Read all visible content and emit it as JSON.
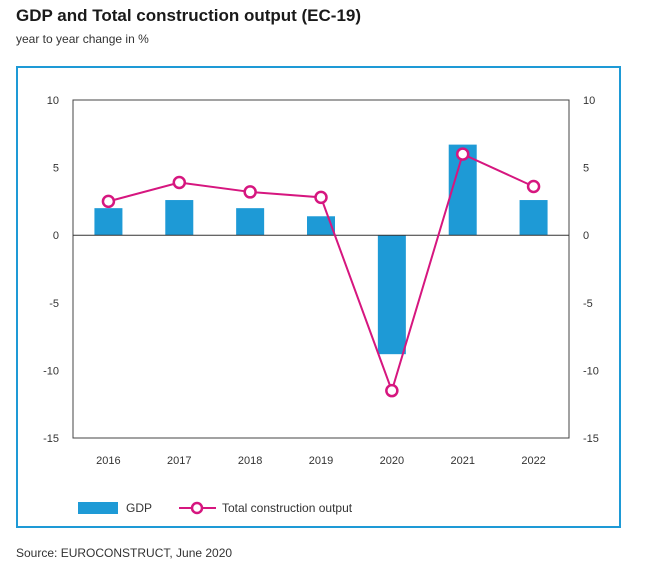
{
  "header": {
    "title": "GDP and Total construction output (EC-19)",
    "subtitle": "year to year change in %"
  },
  "footer": {
    "source": "Source: EUROCONSTRUCT, June 2020"
  },
  "colors": {
    "frame": "#1e9ad6",
    "gdp": "#1e9ad6",
    "construction": "#d6167f"
  },
  "chart_data": {
    "type": "bar",
    "categories": [
      "2016",
      "2017",
      "2018",
      "2019",
      "2020",
      "2021",
      "2022"
    ],
    "series": [
      {
        "name": "GDP",
        "type": "bar",
        "values": [
          2.0,
          2.6,
          2.0,
          1.4,
          -8.8,
          6.7,
          2.6
        ]
      },
      {
        "name": "Total construction output",
        "type": "line",
        "values": [
          2.5,
          3.9,
          3.2,
          2.8,
          -11.5,
          6.0,
          3.6
        ]
      }
    ],
    "ylim": [
      -15,
      10
    ],
    "yticks": [
      10,
      5,
      0,
      -5,
      -10,
      -15
    ],
    "secondary_y_axis": true,
    "grid": false,
    "legend": "bottom-left"
  }
}
